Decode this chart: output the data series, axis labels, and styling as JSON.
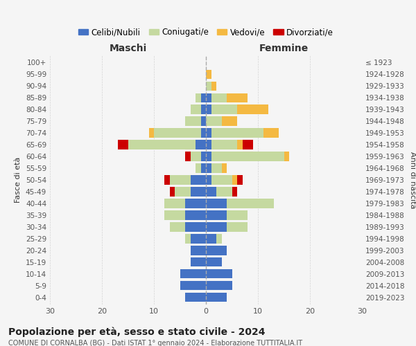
{
  "age_groups": [
    "0-4",
    "5-9",
    "10-14",
    "15-19",
    "20-24",
    "25-29",
    "30-34",
    "35-39",
    "40-44",
    "45-49",
    "50-54",
    "55-59",
    "60-64",
    "65-69",
    "70-74",
    "75-79",
    "80-84",
    "85-89",
    "90-94",
    "95-99",
    "100+"
  ],
  "birth_years": [
    "2019-2023",
    "2014-2018",
    "2009-2013",
    "2004-2008",
    "1999-2003",
    "1994-1998",
    "1989-1993",
    "1984-1988",
    "1979-1983",
    "1974-1978",
    "1969-1973",
    "1964-1968",
    "1959-1963",
    "1954-1958",
    "1949-1953",
    "1944-1948",
    "1939-1943",
    "1934-1938",
    "1929-1933",
    "1924-1928",
    "≤ 1923"
  ],
  "colors": {
    "celibi": "#4472c4",
    "coniugati": "#c5d9a0",
    "vedovi": "#f4b942",
    "divorziati": "#cc0000"
  },
  "legend_labels": [
    "Celibi/Nubili",
    "Coniugati/e",
    "Vedovi/e",
    "Divorziati/e"
  ],
  "maschi": {
    "celibi": [
      4,
      5,
      5,
      3,
      3,
      3,
      4,
      4,
      4,
      3,
      3,
      1,
      1,
      2,
      1,
      1,
      1,
      1,
      0,
      0,
      0
    ],
    "coniugati": [
      0,
      0,
      0,
      0,
      0,
      1,
      3,
      4,
      4,
      3,
      4,
      1,
      2,
      13,
      9,
      3,
      2,
      1,
      0,
      0,
      0
    ],
    "vedovi": [
      0,
      0,
      0,
      0,
      0,
      0,
      0,
      0,
      0,
      0,
      0,
      0,
      0,
      0,
      1,
      0,
      0,
      0,
      0,
      0,
      0
    ],
    "divorziati": [
      0,
      0,
      0,
      0,
      0,
      0,
      0,
      0,
      0,
      1,
      1,
      0,
      1,
      2,
      0,
      0,
      0,
      0,
      0,
      0,
      0
    ]
  },
  "femmine": {
    "nubili": [
      4,
      5,
      5,
      3,
      4,
      2,
      4,
      4,
      4,
      2,
      1,
      1,
      1,
      1,
      1,
      0,
      1,
      1,
      0,
      0,
      0
    ],
    "coniugate": [
      0,
      0,
      0,
      0,
      0,
      1,
      4,
      4,
      9,
      3,
      4,
      2,
      14,
      5,
      10,
      3,
      5,
      3,
      1,
      0,
      0
    ],
    "vedove": [
      0,
      0,
      0,
      0,
      0,
      0,
      0,
      0,
      0,
      0,
      1,
      1,
      1,
      1,
      3,
      3,
      6,
      4,
      1,
      1,
      0
    ],
    "divorziate": [
      0,
      0,
      0,
      0,
      0,
      0,
      0,
      0,
      0,
      1,
      1,
      0,
      0,
      2,
      0,
      0,
      0,
      0,
      0,
      0,
      0
    ]
  },
  "title": "Popolazione per età, sesso e stato civile - 2024",
  "subtitle": "COMUNE DI CORNALBA (BG) - Dati ISTAT 1° gennaio 2024 - Elaborazione TUTTITALIA.IT",
  "xlabel_left": "Maschi",
  "xlabel_right": "Femmine",
  "ylabel_left": "Fasce di età",
  "ylabel_right": "Anni di nascita",
  "xlim": 30,
  "background": "#f5f5f5"
}
